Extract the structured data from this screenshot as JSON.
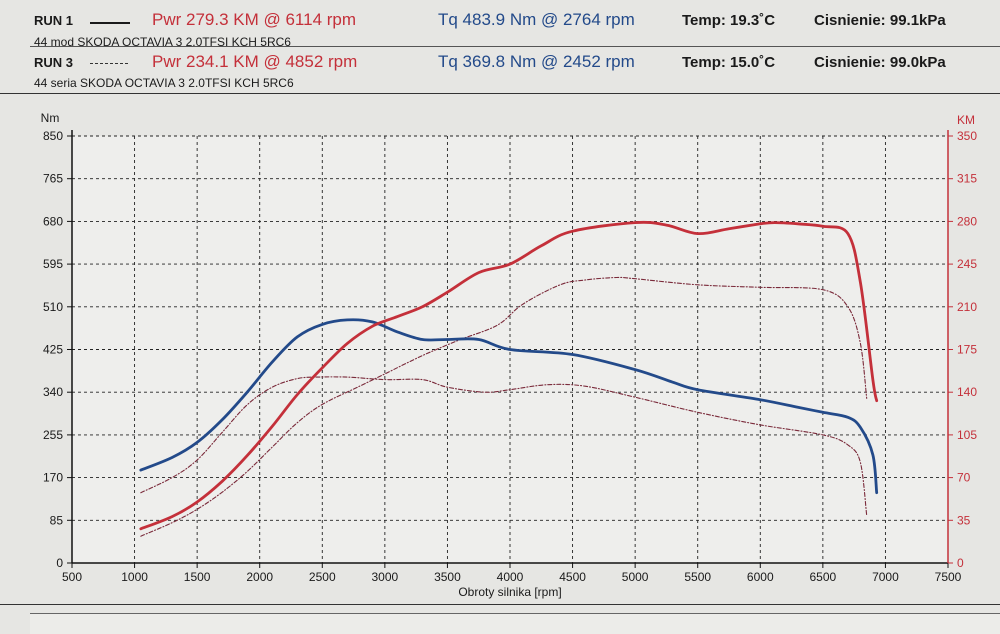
{
  "header": {
    "run1": {
      "label": "RUN 1",
      "power": "Pwr  279.3 KM @ 6114 rpm",
      "torque": "Tq  483.9 Nm @ 2764 rpm",
      "temp": "Temp: 19.3˚C",
      "pressure": "Cisnienie: 99.1kPa",
      "description": "44 mod SKODA OCTAVIA 3 2.0TFSI KCH 5RC6"
    },
    "run3": {
      "label": "RUN 3",
      "power": "Pwr  234.1 KM @ 4852 rpm",
      "torque": "Tq  369.8 Nm @ 2452 rpm",
      "temp": "Temp: 15.0˚C",
      "pressure": "Cisnienie: 99.0kPa",
      "description": "44 seria  SKODA OCTAVIA 3 2.0TFSI KCH 5RC6"
    }
  },
  "chart_data": {
    "type": "line",
    "title": "",
    "xlabel": "Obroty silnika [rpm]",
    "ylabel_left": "Nm",
    "ylabel_right": "KM",
    "xlim": [
      500,
      7500
    ],
    "ylim_left": [
      0,
      850
    ],
    "ylim_right": [
      0,
      350
    ],
    "x_ticks": [
      500,
      1000,
      1500,
      2000,
      2500,
      3000,
      3500,
      4000,
      4500,
      5000,
      5500,
      6000,
      6500,
      7000,
      7500
    ],
    "y_left_ticks": [
      0,
      85,
      170,
      255,
      340,
      425,
      510,
      595,
      680,
      765,
      850
    ],
    "y_right_ticks": [
      0,
      35,
      70,
      105,
      140,
      175,
      210,
      245,
      280,
      315,
      350
    ],
    "grid": true,
    "series": [
      {
        "name": "RUN 1 Tq",
        "axis": "left",
        "color": "#234a8a",
        "style": "solid",
        "x": [
          1050,
          1300,
          1500,
          1700,
          1900,
          2100,
          2300,
          2500,
          2700,
          2900,
          3100,
          3300,
          3500,
          3750,
          4000,
          4500,
          5000,
          5300,
          5500,
          6000,
          6300,
          6500,
          6700,
          6800,
          6900,
          6930
        ],
        "y": [
          185,
          210,
          240,
          285,
          340,
          400,
          450,
          475,
          484,
          480,
          460,
          445,
          445,
          445,
          425,
          415,
          385,
          360,
          345,
          325,
          310,
          300,
          290,
          270,
          215,
          140
        ]
      },
      {
        "name": "RUN 1 Pwr",
        "axis": "right",
        "color": "#c4303a",
        "style": "solid",
        "x": [
          1050,
          1300,
          1500,
          1700,
          1900,
          2100,
          2300,
          2500,
          2700,
          2900,
          3100,
          3300,
          3500,
          3750,
          4000,
          4250,
          4500,
          5000,
          5250,
          5500,
          5750,
          6000,
          6114,
          6300,
          6500,
          6700,
          6800,
          6900,
          6930
        ],
        "y": [
          28,
          38,
          50,
          67,
          88,
          112,
          138,
          160,
          180,
          194,
          202,
          210,
          222,
          238,
          245,
          260,
          272,
          279,
          277,
          270,
          274,
          278,
          279,
          278,
          276,
          270,
          230,
          150,
          133
        ]
      },
      {
        "name": "RUN 3 Tq",
        "axis": "left",
        "color": "#7a2a3a",
        "style": "dashed",
        "x": [
          1050,
          1300,
          1500,
          1700,
          1900,
          2100,
          2300,
          2452,
          2700,
          3000,
          3300,
          3500,
          3800,
          4000,
          4300,
          4600,
          5000,
          5500,
          6000,
          6500,
          6700,
          6800,
          6850
        ],
        "y": [
          140,
          170,
          205,
          260,
          315,
          350,
          367,
          370,
          370,
          365,
          365,
          350,
          340,
          345,
          355,
          352,
          330,
          300,
          275,
          255,
          235,
          200,
          95
        ]
      },
      {
        "name": "RUN 3 Pwr",
        "axis": "right",
        "color": "#7a2a3a",
        "style": "dashed",
        "x": [
          1050,
          1300,
          1500,
          1700,
          1900,
          2100,
          2300,
          2500,
          2800,
          3000,
          3300,
          3600,
          3900,
          4100,
          4400,
          4600,
          4852,
          5000,
          5500,
          6000,
          6500,
          6700,
          6800,
          6850
        ],
        "y": [
          22,
          33,
          44,
          58,
          75,
          95,
          115,
          130,
          145,
          155,
          170,
          183,
          195,
          212,
          228,
          232,
          234,
          233,
          228,
          226,
          224,
          210,
          180,
          135
        ]
      }
    ]
  }
}
